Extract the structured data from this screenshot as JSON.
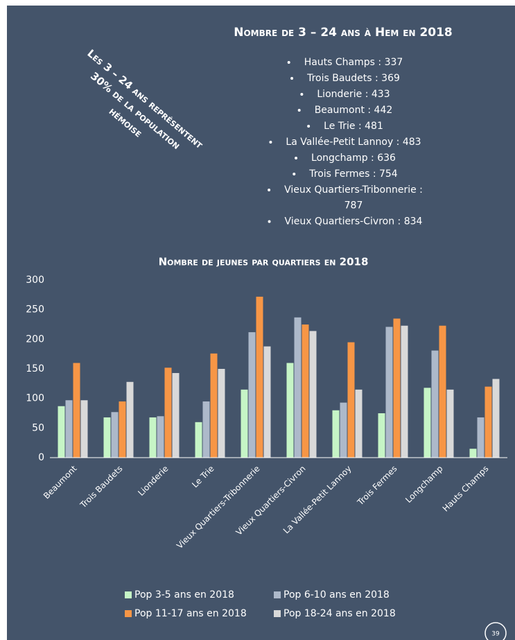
{
  "slide": {
    "heading": "Nombre de 3 – 24 ans à Hem en 2018",
    "annotation": [
      "Les 3 – 24 ans représentent",
      "30% de la population",
      "hémoise"
    ],
    "items": [
      [
        "Hauts Champs : 337"
      ],
      [
        "Trois Baudets : 369"
      ],
      [
        "Lionderie : 433"
      ],
      [
        "Beaumont : 442"
      ],
      [
        "Le Trie : 481"
      ],
      [
        "La Vallée-Petit Lannoy : 483"
      ],
      [
        "Longchamp : 636"
      ],
      [
        "Trois Fermes : 754"
      ],
      [
        "Vieux Quartiers-Tribonnerie :",
        "787"
      ],
      [
        "Vieux Quartiers-Civron : 834"
      ]
    ],
    "page_number": "39"
  },
  "chart_data": {
    "type": "bar",
    "title": "Nombre de jeunes par quartiers en 2018",
    "categories": [
      "Beaumont",
      "Trois Baudets",
      "Lionderie",
      "Le Trie",
      "Vieux Quartiers-Tribonnerie",
      "Vieux Quartiers-Civron",
      "La Vallée-Petit Lannoy",
      "Trois Fermes",
      "Longchamp",
      "Hauts Champs"
    ],
    "series": [
      {
        "name": "Pop 3-5 ans en 2018",
        "color": "#c6f5c6",
        "values": [
          87,
          68,
          68,
          60,
          115,
          160,
          80,
          75,
          118,
          15
        ]
      },
      {
        "name": "Pop 6-10 ans en 2018",
        "color": "#adb9ca",
        "values": [
          97,
          77,
          70,
          95,
          212,
          237,
          93,
          221,
          181,
          68
        ]
      },
      {
        "name": "Pop 11-17 ans en 2018",
        "color": "#f79646",
        "values": [
          160,
          95,
          152,
          176,
          272,
          225,
          195,
          235,
          223,
          120
        ]
      },
      {
        "name": "Pop 18-24 ans en 2018",
        "color": "#d9d9d9",
        "values": [
          97,
          128,
          143,
          150,
          188,
          214,
          115,
          223,
          115,
          133
        ]
      }
    ],
    "ylim": [
      0,
      300
    ],
    "yticks": [
      0,
      50,
      100,
      150,
      200,
      250,
      300
    ],
    "grid": false,
    "legend": "bottom"
  }
}
